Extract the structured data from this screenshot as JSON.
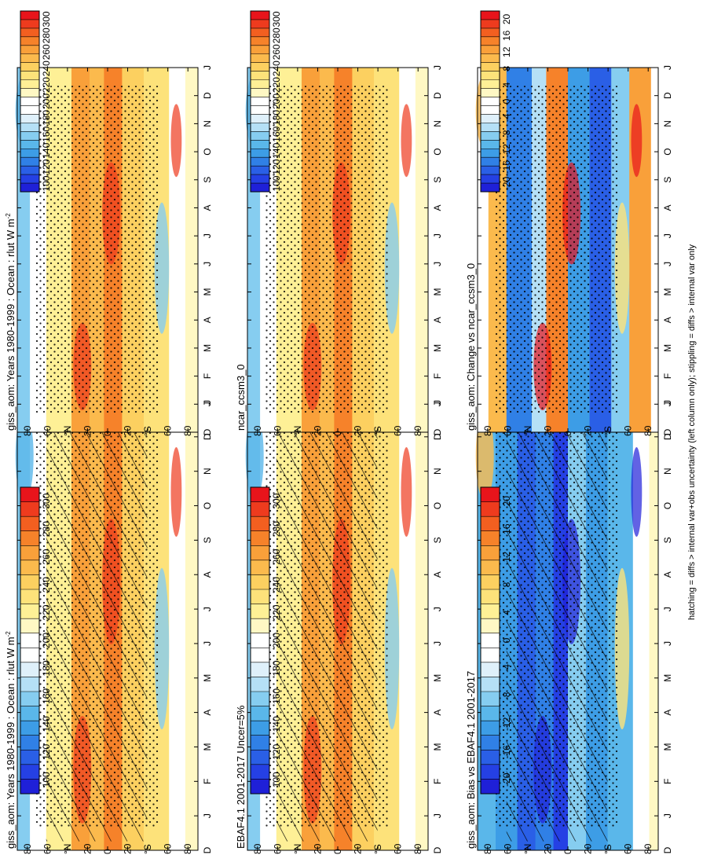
{
  "footnote": "hatching = diffs > internal var+obs uncertainty (left column only); stippling = diffs > internal var only",
  "chart_data": [
    {
      "type": "heatmap",
      "id": "p1",
      "title": "giss_aom: Years 1980-1999 : Ocean : rlut W m",
      "title_sup": "-2",
      "kind": "abs",
      "lat_ticks": [
        "80",
        "60",
        "°N",
        "20",
        "0",
        "20",
        "°S",
        "60",
        "80"
      ],
      "month_ticks": [
        "D",
        "J",
        "F",
        "M",
        "A",
        "M",
        "J",
        "J",
        "A",
        "S",
        "O",
        "N",
        "D",
        "J"
      ],
      "hatching": true,
      "stippling": true
    },
    {
      "type": "heatmap",
      "id": "p2",
      "title": "EBAF4.1 2001-2017 Uncer=5%",
      "title_sup": "",
      "kind": "abs",
      "lat_ticks": [
        "80",
        "60",
        "°N",
        "20",
        "0",
        "20",
        "°S",
        "60",
        "80"
      ],
      "month_ticks": [
        "D",
        "J",
        "F",
        "M",
        "A",
        "M",
        "J",
        "J",
        "A",
        "S",
        "O",
        "N",
        "D",
        "J"
      ],
      "hatching": true,
      "stippling": true
    },
    {
      "type": "heatmap",
      "id": "p3",
      "title": "giss_aom: Bias vs EBAF4.1 2001-2017",
      "title_sup": "",
      "kind": "diff",
      "lat_ticks": [
        "80",
        "60",
        "°N",
        "20",
        "0",
        "20",
        "°S",
        "60",
        "80"
      ],
      "month_ticks": [
        "D",
        "J",
        "F",
        "M",
        "A",
        "M",
        "J",
        "J",
        "A",
        "S",
        "O",
        "N",
        "D",
        "J"
      ],
      "hatching": true,
      "stippling": true
    },
    {
      "type": "heatmap",
      "id": "p4",
      "title": "giss_aom: Years 1980-1999 : Ocean : rlut W m",
      "title_sup": "-2",
      "kind": "abs",
      "lat_ticks": [
        "80",
        "60",
        "°N",
        "20",
        "0",
        "20",
        "°S",
        "60",
        "80"
      ],
      "month_ticks": [
        "D",
        "J",
        "F",
        "M",
        "A",
        "M",
        "J",
        "J",
        "A",
        "S",
        "O",
        "N",
        "D",
        "J"
      ],
      "hatching": false,
      "stippling": true
    },
    {
      "type": "heatmap",
      "id": "p5",
      "title": "ncar_ccsm3_0",
      "title_sup": "",
      "kind": "abs",
      "lat_ticks": [
        "80",
        "60",
        "°N",
        "20",
        "0",
        "20",
        "°S",
        "60",
        "80"
      ],
      "month_ticks": [
        "D",
        "J",
        "F",
        "M",
        "A",
        "M",
        "J",
        "J",
        "A",
        "S",
        "O",
        "N",
        "D",
        "J"
      ],
      "hatching": false,
      "stippling": true
    },
    {
      "type": "heatmap",
      "id": "p6",
      "title": "giss_aom: Change vs ncar_ccsm3_0",
      "title_sup": "",
      "kind": "diff",
      "lat_ticks": [
        "80",
        "60",
        "°N",
        "20",
        "0",
        "20",
        "°S",
        "60",
        "80"
      ],
      "month_ticks": [
        "D",
        "J",
        "F",
        "M",
        "A",
        "M",
        "J",
        "J",
        "A",
        "S",
        "O",
        "N",
        "D",
        "J"
      ],
      "hatching": false,
      "stippling": true
    }
  ],
  "colorbars": [
    {
      "id": "cb-abs-left",
      "labels": [
        "300",
        "280",
        "260",
        "240",
        "220",
        "200",
        "180",
        "160",
        "140",
        "120",
        "100"
      ],
      "colors": [
        "#e8141b",
        "#ee3b1e",
        "#f35f20",
        "#f6822a",
        "#f9a03a",
        "#fbba4d",
        "#fcd060",
        "#fde27a",
        "#fef096",
        "#fff8c4",
        "#ffffff",
        "#ffffff",
        "#dff0fa",
        "#b5e0f6",
        "#86cdf0",
        "#5ab7ea",
        "#3d9de6",
        "#3080e6",
        "#2a5fe6",
        "#2540e4",
        "#1f20d8"
      ]
    },
    {
      "id": "cb-abs-left-2",
      "labels": [
        "300",
        "280",
        "260",
        "240",
        "220",
        "200",
        "180",
        "160",
        "140",
        "120",
        "100"
      ],
      "colors": [
        "#e8141b",
        "#ee3b1e",
        "#f35f20",
        "#f6822a",
        "#f9a03a",
        "#fbba4d",
        "#fcd060",
        "#fde27a",
        "#fef096",
        "#fff8c4",
        "#ffffff",
        "#ffffff",
        "#dff0fa",
        "#b5e0f6",
        "#86cdf0",
        "#5ab7ea",
        "#3d9de6",
        "#3080e6",
        "#2a5fe6",
        "#2540e4",
        "#1f20d8"
      ]
    },
    {
      "id": "cb-diff-left",
      "labels": [
        "20",
        "16",
        "12",
        "8",
        "4",
        "0",
        "-4",
        "-8",
        "-12",
        "-16",
        "-20"
      ],
      "colors": [
        "#e8141b",
        "#ee3b1e",
        "#f35f20",
        "#f6822a",
        "#f9a03a",
        "#fbba4d",
        "#fcd060",
        "#fde27a",
        "#fef096",
        "#fff8c4",
        "#ffffff",
        "#ffffff",
        "#dff0fa",
        "#b5e0f6",
        "#86cdf0",
        "#5ab7ea",
        "#3d9de6",
        "#3080e6",
        "#2a5fe6",
        "#2540e4",
        "#1f20d8"
      ]
    },
    {
      "id": "cb-abs-right",
      "labels": [
        "300",
        "280",
        "260",
        "240",
        "220",
        "200",
        "180",
        "160",
        "140",
        "120",
        "100"
      ],
      "colors": [
        "#e8141b",
        "#ee3b1e",
        "#f35f20",
        "#f6822a",
        "#f9a03a",
        "#fbba4d",
        "#fcd060",
        "#fde27a",
        "#fef096",
        "#fff8c4",
        "#ffffff",
        "#ffffff",
        "#dff0fa",
        "#b5e0f6",
        "#86cdf0",
        "#5ab7ea",
        "#3d9de6",
        "#3080e6",
        "#2a5fe6",
        "#2540e4",
        "#1f20d8"
      ]
    },
    {
      "id": "cb-abs-right-2",
      "labels": [
        "300",
        "280",
        "260",
        "240",
        "220",
        "200",
        "180",
        "160",
        "140",
        "120",
        "100"
      ],
      "colors": [
        "#e8141b",
        "#ee3b1e",
        "#f35f20",
        "#f6822a",
        "#f9a03a",
        "#fbba4d",
        "#fcd060",
        "#fde27a",
        "#fef096",
        "#fff8c4",
        "#ffffff",
        "#ffffff",
        "#dff0fa",
        "#b5e0f6",
        "#86cdf0",
        "#5ab7ea",
        "#3d9de6",
        "#3080e6",
        "#2a5fe6",
        "#2540e4",
        "#1f20d8"
      ]
    },
    {
      "id": "cb-diff-right",
      "labels": [
        "20",
        "16",
        "12",
        "8",
        "4",
        "0",
        "-4",
        "-8",
        "-12",
        "-16",
        "-20"
      ],
      "colors": [
        "#e8141b",
        "#ee3b1e",
        "#f35f20",
        "#f6822a",
        "#f9a03a",
        "#fbba4d",
        "#fcd060",
        "#fde27a",
        "#fef096",
        "#fff8c4",
        "#ffffff",
        "#ffffff",
        "#dff0fa",
        "#b5e0f6",
        "#86cdf0",
        "#5ab7ea",
        "#3d9de6",
        "#3080e6",
        "#2a5fe6",
        "#2540e4",
        "#1f20d8"
      ]
    }
  ]
}
